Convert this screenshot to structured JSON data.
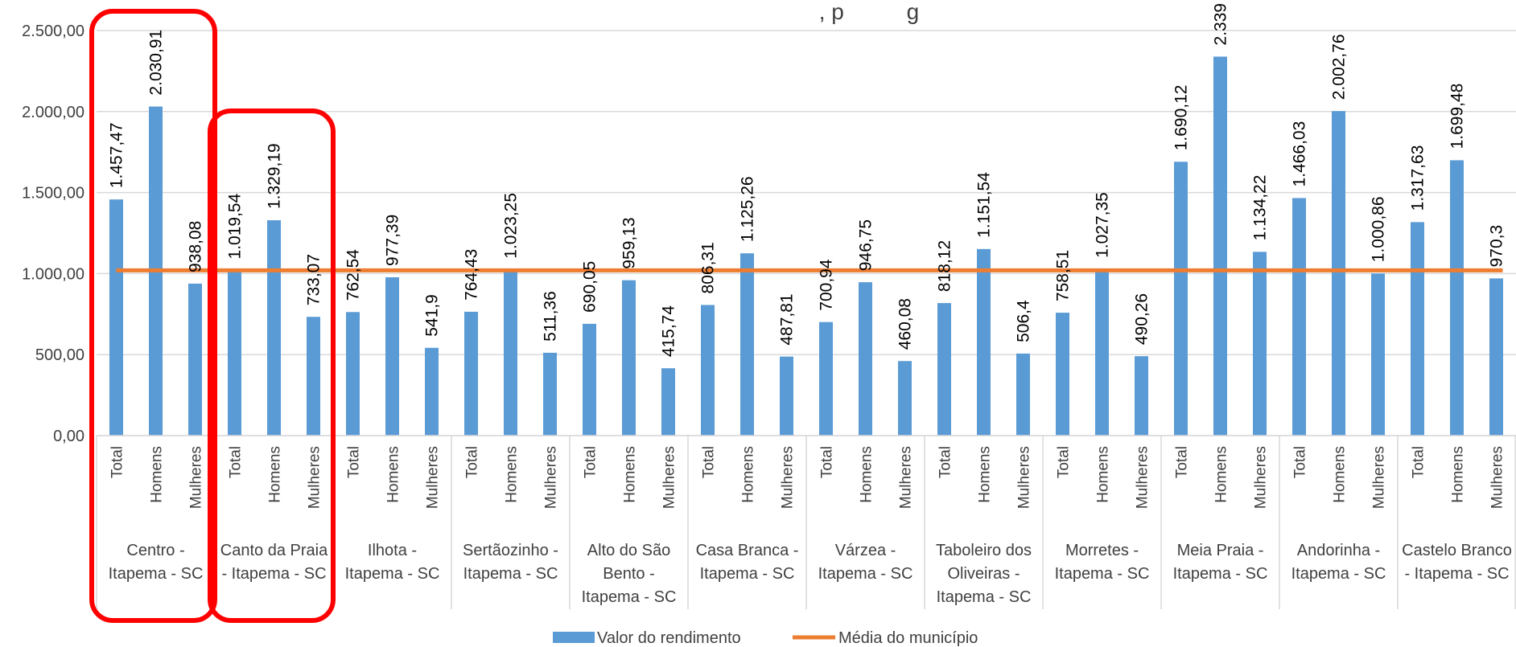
{
  "chart_data": {
    "type": "bar",
    "title": ", p          g",
    "ylim": [
      0,
      2500
    ],
    "y_ticks": [
      "0,00",
      "500,00",
      "1.000,00",
      "1.500,00",
      "2.000,00",
      "2.500,00"
    ],
    "grid": true,
    "legend_position": "bottom",
    "subcategories": [
      "Total",
      "Homens",
      "Mulheres"
    ],
    "groups": [
      {
        "name": "Centro - Itapema - SC",
        "lines": [
          "Centro -",
          "Itapema - SC"
        ],
        "values": [
          1457.47,
          2030.91,
          938.08
        ],
        "labels": [
          "1.457,47",
          "2.030,91",
          "938,08"
        ]
      },
      {
        "name": "Canto da Praia - Itapema - SC",
        "lines": [
          "Canto da Praia",
          "- Itapema - SC"
        ],
        "values": [
          1019.54,
          1329.19,
          733.07
        ],
        "labels": [
          "1.019,54",
          "1.329,19",
          "733,07"
        ]
      },
      {
        "name": "Ilhota - Itapema - SC",
        "lines": [
          "Ilhota -",
          "Itapema - SC"
        ],
        "values": [
          762.54,
          977.39,
          541.9
        ],
        "labels": [
          "762,54",
          "977,39",
          "541,9"
        ]
      },
      {
        "name": "Sertãozinho - Itapema - SC",
        "lines": [
          "Sertãozinho -",
          "Itapema - SC"
        ],
        "values": [
          764.43,
          1023.25,
          511.36
        ],
        "labels": [
          "764,43",
          "1.023,25",
          "511,36"
        ]
      },
      {
        "name": "Alto do São Bento - Itapema - SC",
        "lines": [
          "Alto do São",
          "Bento -",
          "Itapema - SC"
        ],
        "values": [
          690.05,
          959.13,
          415.74
        ],
        "labels": [
          "690,05",
          "959,13",
          "415,74"
        ]
      },
      {
        "name": "Casa Branca - Itapema - SC",
        "lines": [
          "Casa Branca -",
          "Itapema - SC"
        ],
        "values": [
          806.31,
          1125.26,
          487.81
        ],
        "labels": [
          "806,31",
          "1.125,26",
          "487,81"
        ]
      },
      {
        "name": "Várzea - Itapema - SC",
        "lines": [
          "Várzea -",
          "Itapema - SC"
        ],
        "values": [
          700.94,
          946.75,
          460.08
        ],
        "labels": [
          "700,94",
          "946,75",
          "460,08"
        ]
      },
      {
        "name": "Taboleiro dos Oliveiras - Itapema - SC",
        "lines": [
          "Taboleiro dos",
          "Oliveiras -",
          "Itapema - SC"
        ],
        "values": [
          818.12,
          1151.54,
          506.4
        ],
        "labels": [
          "818,12",
          "1.151,54",
          "506,4"
        ]
      },
      {
        "name": "Morretes - Itapema - SC",
        "lines": [
          "Morretes -",
          "Itapema - SC"
        ],
        "values": [
          758.51,
          1027.35,
          490.26
        ],
        "labels": [
          "758,51",
          "1.027,35",
          "490,26"
        ]
      },
      {
        "name": "Meia Praia - Itapema - SC",
        "lines": [
          "Meia Praia -",
          "Itapema - SC"
        ],
        "values": [
          1690.12,
          2339,
          1134.22
        ],
        "labels": [
          "1.690,12",
          "2.339",
          "1.134,22"
        ]
      },
      {
        "name": "Andorinha - Itapema - SC",
        "lines": [
          "Andorinha -",
          "Itapema - SC"
        ],
        "values": [
          1466.03,
          2002.76,
          1000.86
        ],
        "labels": [
          "1.466,03",
          "2.002,76",
          "1.000,86"
        ]
      },
      {
        "name": "Castelo Branco - Itapema - SC",
        "lines": [
          "Castelo Branco",
          "- Itapema - SC"
        ],
        "values": [
          1317.63,
          1699.48,
          970.3
        ],
        "labels": [
          "1.317,63",
          "1.699,48",
          "970,3"
        ]
      }
    ],
    "series": [
      {
        "name": "Valor do rendimento",
        "kind": "bar",
        "color": "#5B9BD5"
      },
      {
        "name": "Média do município",
        "kind": "line",
        "color": "#ED7D31",
        "value": 1020
      }
    ],
    "highlighted_groups": [
      "Centro - Itapema - SC",
      "Canto da Praia - Itapema - SC"
    ],
    "highlight_color": "#FF0000"
  }
}
